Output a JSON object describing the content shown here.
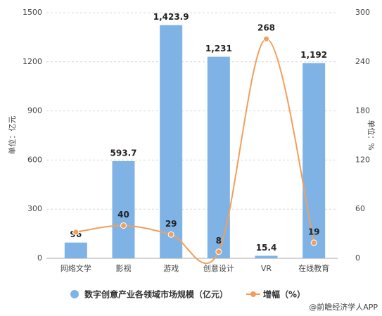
{
  "chart_data": {
    "type": "bar_line",
    "categories": [
      "网络文学",
      "影视",
      "游戏",
      "创意设计",
      "VR",
      "在线教育"
    ],
    "ylabel": "单位：亿元",
    "y2label": "单位：%",
    "ylim": [
      0,
      1500
    ],
    "yticks": [
      0,
      300,
      600,
      900,
      1200,
      1500
    ],
    "y2lim": [
      0,
      300
    ],
    "y2ticks": [
      0,
      60,
      120,
      180,
      240,
      300
    ],
    "grid": true,
    "series": [
      {
        "name": "数字创意产业各领域市场规模（亿元）",
        "type": "bar",
        "color": "#7fb3e6",
        "values": [
          96,
          593.7,
          1423.9,
          1231,
          15.4,
          1192
        ],
        "value_labels": [
          "96",
          "593.7",
          "1,423.9",
          "1,231",
          "15.4",
          "1,192"
        ]
      },
      {
        "name": "增幅（%）",
        "type": "line",
        "axis": "y2",
        "color": "#f0a05c",
        "values": [
          32,
          40,
          29,
          8,
          268,
          19
        ],
        "value_labels": [
          null,
          "40",
          "29",
          "8",
          "268",
          "19"
        ]
      }
    ],
    "source": "@前瞻经济学人APP"
  }
}
